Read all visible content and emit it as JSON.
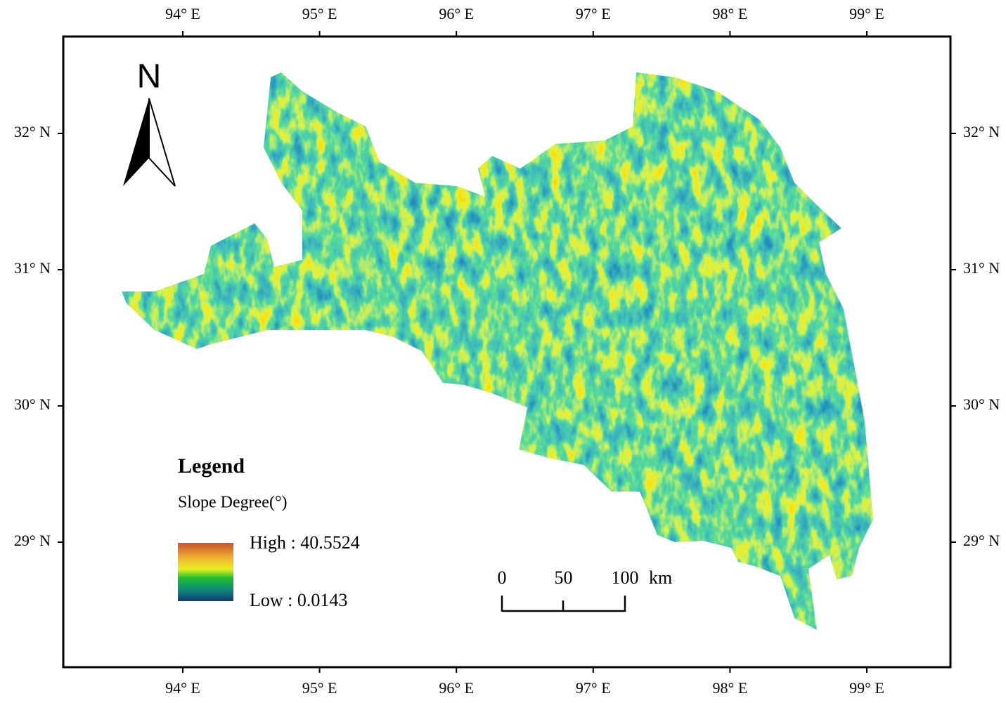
{
  "map": {
    "north_label": "N",
    "lon_labels": [
      "94° E",
      "95° E",
      "96° E",
      "97° E",
      "98° E",
      "99° E"
    ],
    "lat_labels": [
      "32° N",
      "31° N",
      "30° N",
      "29° N"
    ],
    "legend": {
      "title": "Legend",
      "subtitle": "Slope Degree(°)",
      "high": "High : 40.5524",
      "low": "Low : 0.0143"
    },
    "scale_bar": {
      "labels": [
        "0",
        "50",
        "100"
      ],
      "unit": "km"
    }
  }
}
